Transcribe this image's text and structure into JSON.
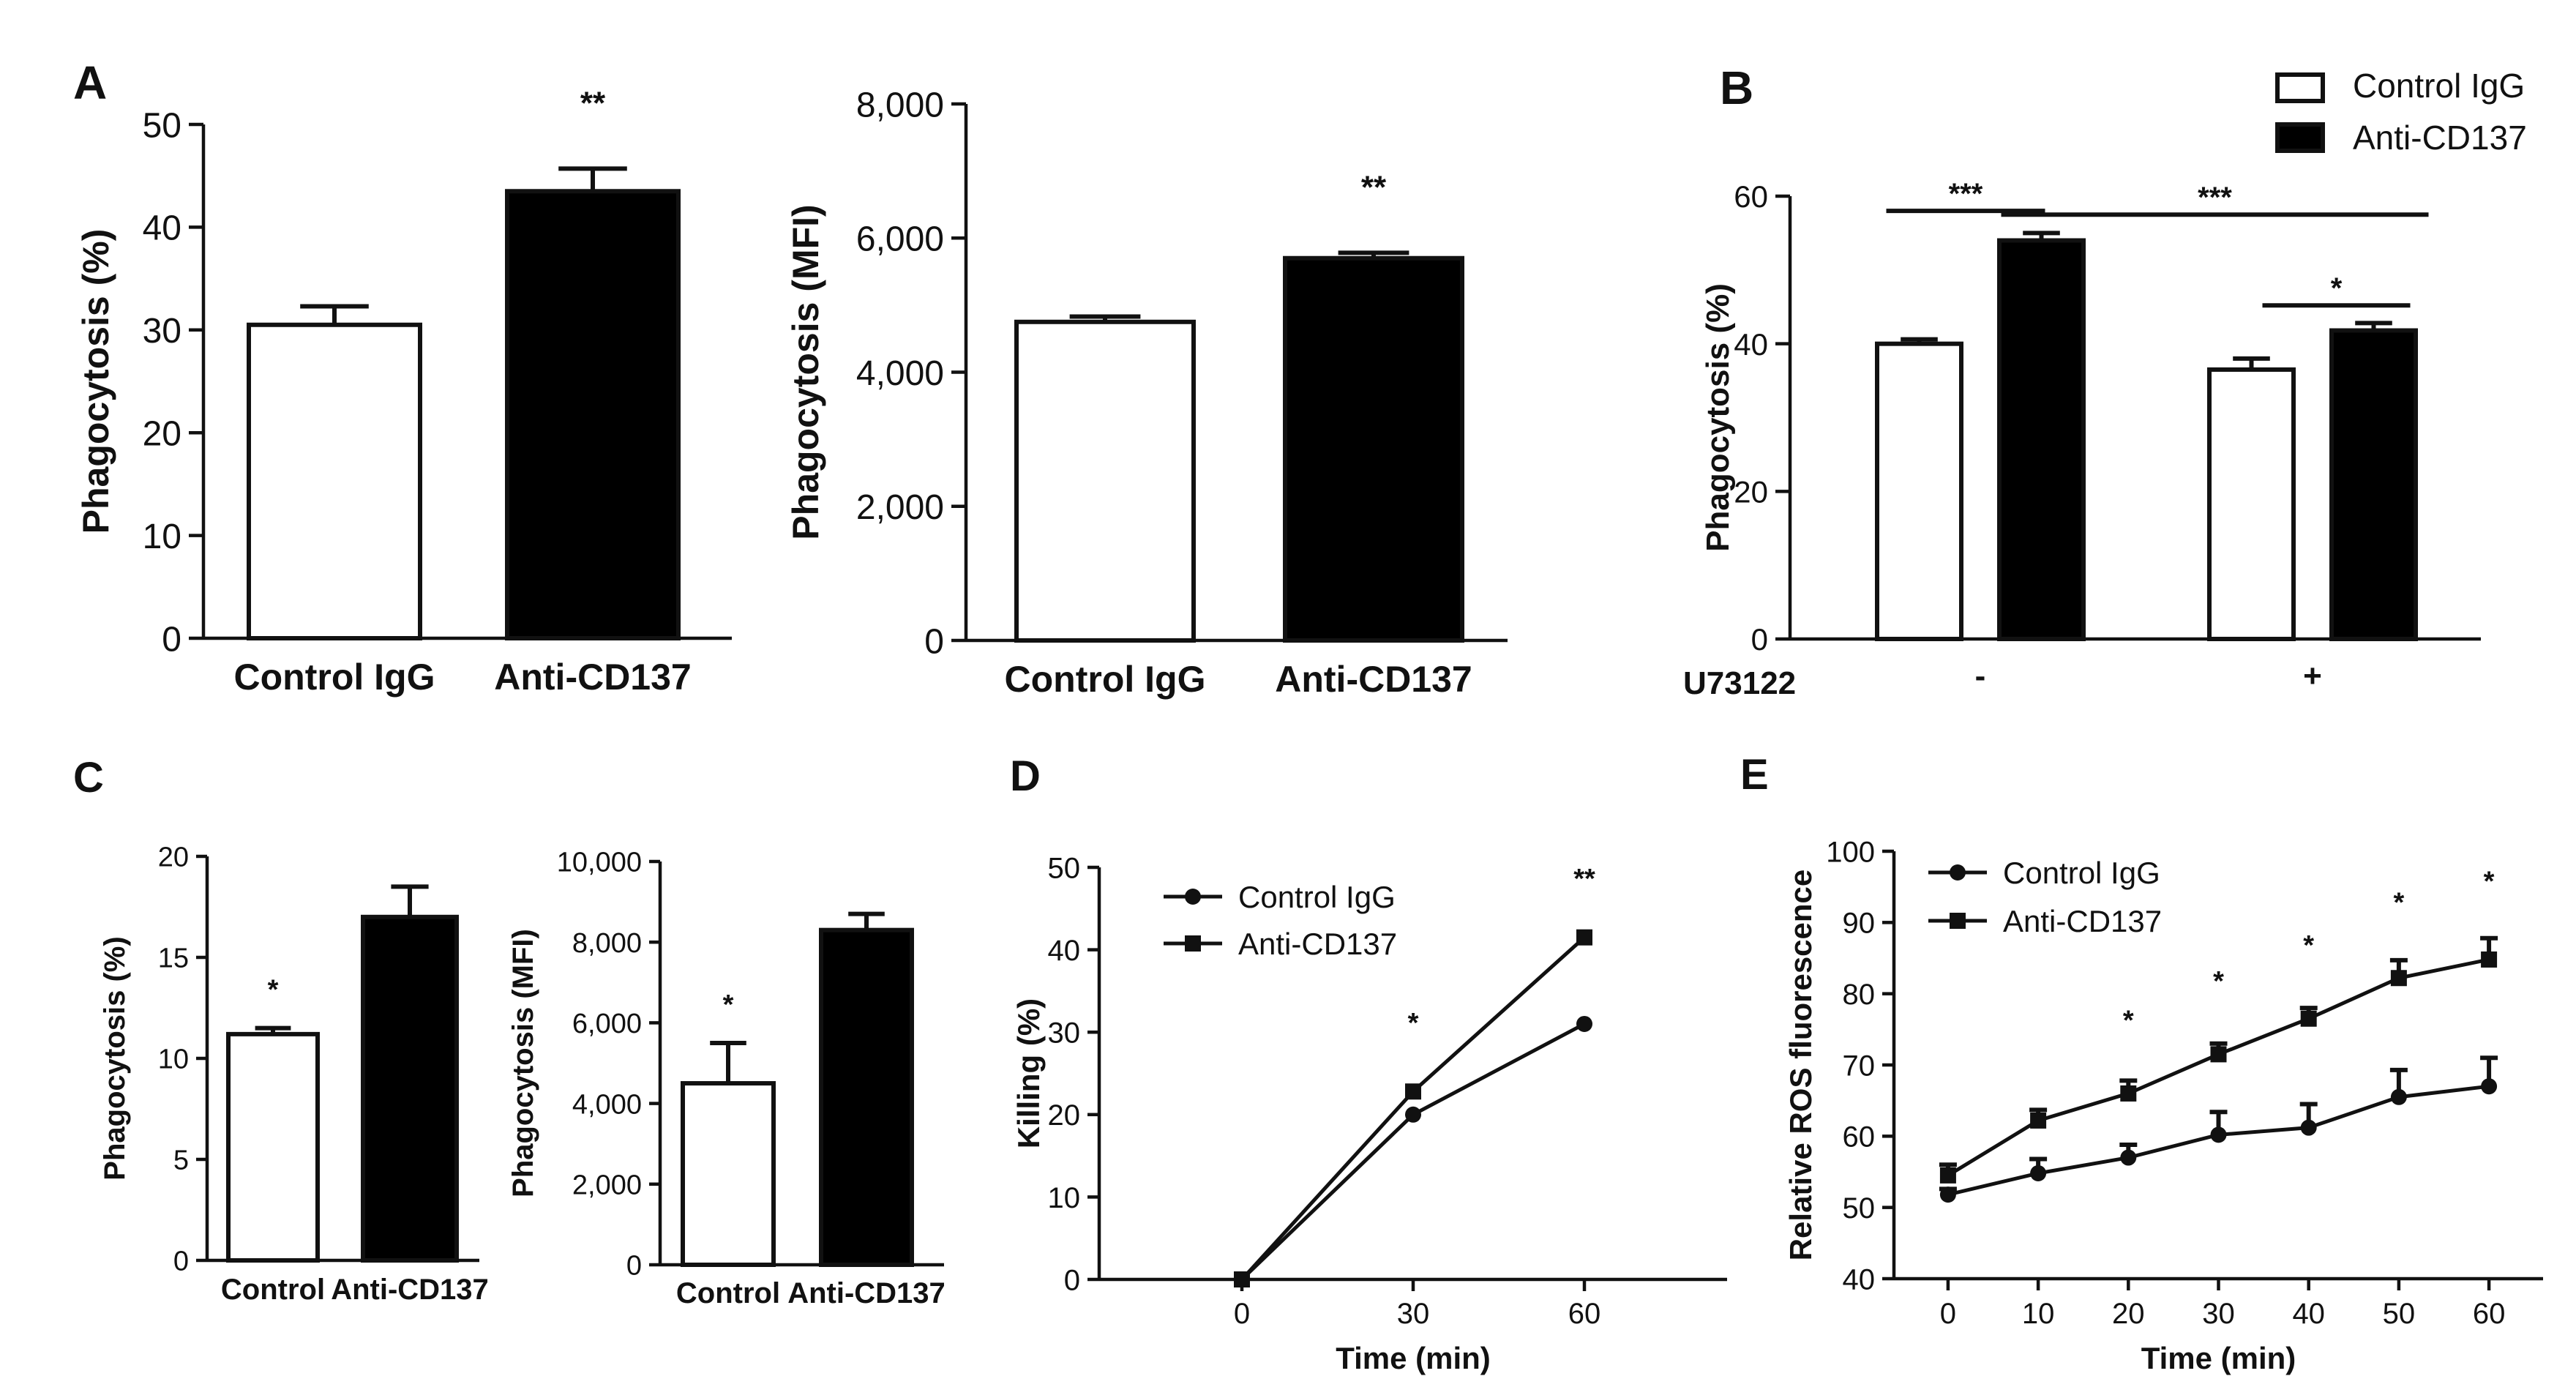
{
  "colors": {
    "control": "#ffffff",
    "treated": "#000000",
    "ink": "#111111"
  },
  "legend": {
    "control": "Control IgG",
    "treated": "Anti-CD137"
  },
  "chart_data": [
    {
      "id": "A1",
      "panel_label": "A",
      "type": "bar",
      "ylabel": "Phagocytosis (%)",
      "ylim": [
        0,
        50
      ],
      "yticks": [
        0,
        10,
        20,
        30,
        40,
        50
      ],
      "ytick_labels": [
        "0",
        "10",
        "20",
        "30",
        "40",
        "50"
      ],
      "categories": [
        "Control IgG",
        "Anti-CD137"
      ],
      "values": [
        30.5,
        43.5
      ],
      "errors": [
        1.8,
        2.2
      ],
      "significance": "**"
    },
    {
      "id": "A2",
      "panel_label": "",
      "type": "bar",
      "ylabel": "Phagocytosis (MFI)",
      "ylim": [
        0,
        8000
      ],
      "yticks": [
        0,
        2000,
        4000,
        6000,
        8000
      ],
      "ytick_labels": [
        "0",
        "2,000",
        "4,000",
        "6,000",
        "8,000"
      ],
      "categories": [
        "Control IgG",
        "Anti-CD137"
      ],
      "values": [
        4750,
        5700
      ],
      "errors": [
        80,
        80
      ],
      "significance": "**"
    },
    {
      "id": "B",
      "panel_label": "B",
      "type": "bar",
      "ylabel": "Phagocytosis (%)",
      "ylim": [
        0,
        60
      ],
      "yticks": [
        0,
        20,
        40,
        60
      ],
      "ytick_labels": [
        "0",
        "20",
        "40",
        "60"
      ],
      "group_axis_label": "U73122",
      "groups": [
        "-",
        "+"
      ],
      "series": [
        {
          "name": "Control IgG",
          "values": [
            40,
            36.5
          ],
          "errors": [
            0.6,
            1.5
          ]
        },
        {
          "name": "Anti-CD137",
          "values": [
            54,
            41.8
          ],
          "errors": [
            1.0,
            1.0
          ]
        }
      ],
      "comparisons": [
        "***",
        "***",
        "*"
      ]
    },
    {
      "id": "C1",
      "panel_label": "C",
      "type": "bar",
      "ylabel": "Phagocytosis (%)",
      "ylim": [
        0,
        20
      ],
      "yticks": [
        0,
        5,
        10,
        15,
        20
      ],
      "ytick_labels": [
        "0",
        "5",
        "10",
        "15",
        "20"
      ],
      "categories": [
        "Control",
        "Anti-CD137"
      ],
      "values": [
        11.2,
        17.0
      ],
      "errors": [
        0.3,
        1.5
      ],
      "significance": "*"
    },
    {
      "id": "C2",
      "panel_label": "",
      "type": "bar",
      "ylabel": "Phagocytosis (MFI)",
      "ylim": [
        0,
        10000
      ],
      "yticks": [
        0,
        2000,
        4000,
        6000,
        8000,
        10000
      ],
      "ytick_labels": [
        "0",
        "2,000",
        "4,000",
        "6,000",
        "8,000",
        "10,000"
      ],
      "categories": [
        "Control",
        "Anti-CD137"
      ],
      "values": [
        4500,
        8300
      ],
      "errors": [
        1000,
        400
      ],
      "significance": "*"
    },
    {
      "id": "D",
      "panel_label": "D",
      "type": "line",
      "xlabel": "Time (min)",
      "ylabel": "Killing (%)",
      "xlim": [
        -25,
        85
      ],
      "ylim": [
        0,
        50
      ],
      "xticks": [
        0,
        30,
        60
      ],
      "yticks": [
        0,
        10,
        20,
        30,
        40,
        50
      ],
      "ytick_labels": [
        "0",
        "10",
        "20",
        "30",
        "40",
        "50"
      ],
      "x": [
        0,
        30,
        60
      ],
      "series": [
        {
          "name": "Control IgG",
          "marker": "circle",
          "values": [
            0,
            20,
            31
          ]
        },
        {
          "name": "Anti-CD137",
          "marker": "square",
          "values": [
            0,
            22.8,
            41.5
          ]
        }
      ],
      "annotations": [
        {
          "x": 30,
          "y": 30,
          "text": "*"
        },
        {
          "x": 60,
          "y": 47.5,
          "text": "**"
        }
      ]
    },
    {
      "id": "E",
      "panel_label": "E",
      "type": "line",
      "xlabel": "Time (min)",
      "ylabel": "Relative ROS fluorescence",
      "xlim": [
        -6,
        66
      ],
      "ylim": [
        40,
        100
      ],
      "xticks": [
        0,
        10,
        20,
        30,
        40,
        50,
        60
      ],
      "yticks": [
        40,
        50,
        60,
        70,
        80,
        90,
        100
      ],
      "ytick_labels": [
        "40",
        "50",
        "60",
        "70",
        "80",
        "90",
        "100"
      ],
      "x": [
        0,
        10,
        20,
        30,
        40,
        50,
        60
      ],
      "series": [
        {
          "name": "Control IgG",
          "marker": "circle",
          "values": [
            51.8,
            54.8,
            57,
            60.2,
            61.2,
            65.5,
            67
          ],
          "errors": [
            0.8,
            2.0,
            1.8,
            3.2,
            3.3,
            3.8,
            4.0
          ]
        },
        {
          "name": "Anti-CD137",
          "marker": "square",
          "values": [
            54.5,
            62.2,
            66,
            71.5,
            76.5,
            82.2,
            84.8
          ],
          "errors": [
            1.5,
            1.5,
            1.8,
            1.5,
            1.5,
            2.5,
            3.0
          ]
        }
      ],
      "annotations": [
        {
          "x": 20,
          "y": 75,
          "text": "*"
        },
        {
          "x": 30,
          "y": 80.5,
          "text": "*"
        },
        {
          "x": 40,
          "y": 85.5,
          "text": "*"
        },
        {
          "x": 50,
          "y": 91.5,
          "text": "*"
        },
        {
          "x": 60,
          "y": 94.5,
          "text": "*"
        }
      ]
    }
  ]
}
